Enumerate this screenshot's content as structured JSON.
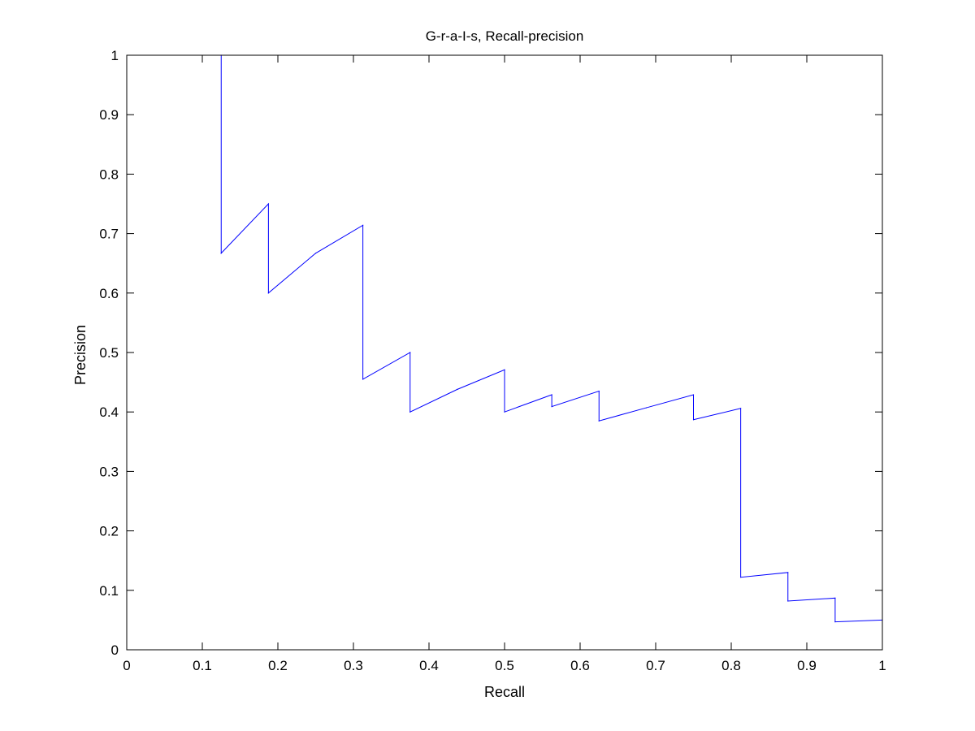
{
  "chart_data": {
    "type": "line",
    "title": "G-r-a-I-s, Recall-precision",
    "xlabel": "Recall",
    "ylabel": "Precision",
    "xlim": [
      0,
      1
    ],
    "ylim": [
      0,
      1
    ],
    "xticks": [
      "0",
      "0.1",
      "0.2",
      "0.3",
      "0.4",
      "0.5",
      "0.6",
      "0.7",
      "0.8",
      "0.9",
      "1"
    ],
    "yticks": [
      "0",
      "0.1",
      "0.2",
      "0.3",
      "0.4",
      "0.5",
      "0.6",
      "0.7",
      "0.8",
      "0.9",
      "1"
    ],
    "grid": false,
    "line_color": "#0000ff",
    "series": [
      {
        "x": [
          0.125,
          0.125,
          0.1875,
          0.1875,
          0.25,
          0.3125,
          0.3125,
          0.375,
          0.375,
          0.4375,
          0.5,
          0.5,
          0.5625,
          0.5625,
          0.625,
          0.625,
          0.6875,
          0.75,
          0.75,
          0.8125,
          0.8125,
          0.875,
          0.875,
          0.9375,
          0.9375,
          1.0
        ],
        "y": [
          1.0,
          0.667,
          0.75,
          0.6,
          0.667,
          0.714,
          0.455,
          0.5,
          0.4,
          0.438,
          0.471,
          0.4,
          0.429,
          0.409,
          0.435,
          0.385,
          0.407,
          0.429,
          0.387,
          0.406,
          0.122,
          0.13,
          0.082,
          0.087,
          0.047,
          0.05
        ]
      }
    ]
  }
}
